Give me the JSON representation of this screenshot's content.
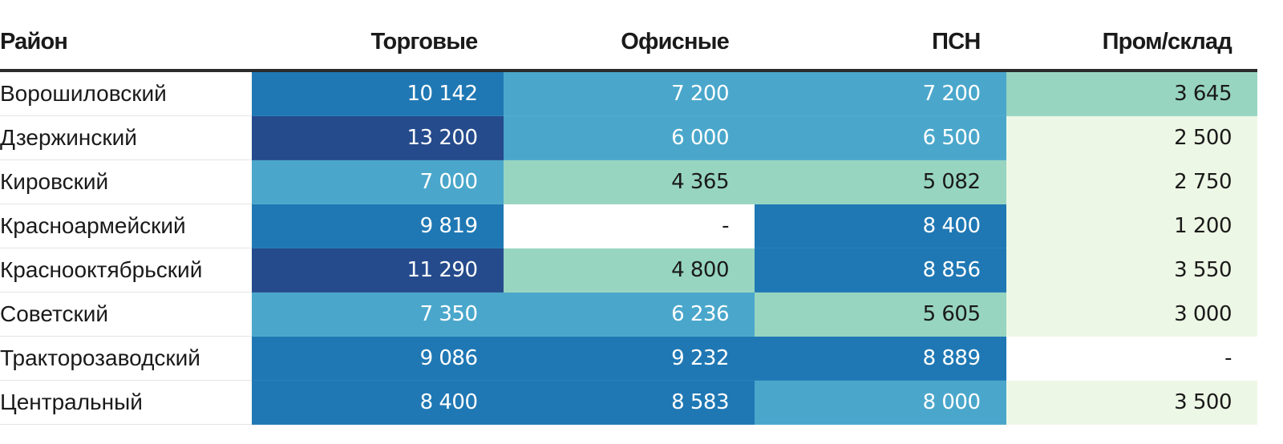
{
  "chart_data": {
    "type": "table",
    "columns": [
      "Район",
      "Торговые",
      "Офисные",
      "ПСН",
      "Пром/склад"
    ],
    "rows": [
      {
        "name": "Ворошиловский",
        "cells": [
          {
            "text": "10 142",
            "value": 10142,
            "bg": "#1f78b4",
            "fg": "#ffffff"
          },
          {
            "text": "7 200",
            "value": 7200,
            "bg": "#4aa7cb",
            "fg": "#ffffff"
          },
          {
            "text": "7 200",
            "value": 7200,
            "bg": "#4aa7cb",
            "fg": "#ffffff"
          },
          {
            "text": "3 645",
            "value": 3645,
            "bg": "#97d5c1",
            "fg": "#1a1a1a"
          }
        ]
      },
      {
        "name": "Дзержинский",
        "cells": [
          {
            "text": "13 200",
            "value": 13200,
            "bg": "#254b8c",
            "fg": "#ffffff"
          },
          {
            "text": "6 000",
            "value": 6000,
            "bg": "#4aa7cb",
            "fg": "#ffffff"
          },
          {
            "text": "6 500",
            "value": 6500,
            "bg": "#4aa7cb",
            "fg": "#ffffff"
          },
          {
            "text": "2 500",
            "value": 2500,
            "bg": "#edf7e5",
            "fg": "#1a1a1a"
          }
        ]
      },
      {
        "name": "Кировский",
        "cells": [
          {
            "text": "7 000",
            "value": 7000,
            "bg": "#4aa7cb",
            "fg": "#ffffff"
          },
          {
            "text": "4 365",
            "value": 4365,
            "bg": "#97d5c1",
            "fg": "#1a1a1a"
          },
          {
            "text": "5 082",
            "value": 5082,
            "bg": "#97d5c1",
            "fg": "#1a1a1a"
          },
          {
            "text": "2 750",
            "value": 2750,
            "bg": "#edf7e5",
            "fg": "#1a1a1a"
          }
        ]
      },
      {
        "name": "Красноармейский",
        "cells": [
          {
            "text": "9 819",
            "value": 9819,
            "bg": "#1f78b4",
            "fg": "#ffffff"
          },
          {
            "text": "-",
            "value": null,
            "bg": "#ffffff",
            "fg": "#1a1a1a"
          },
          {
            "text": "8 400",
            "value": 8400,
            "bg": "#1f78b4",
            "fg": "#ffffff"
          },
          {
            "text": "1 200",
            "value": 1200,
            "bg": "#edf7e5",
            "fg": "#1a1a1a"
          }
        ]
      },
      {
        "name": "Краснооктябрьский",
        "cells": [
          {
            "text": "11 290",
            "value": 11290,
            "bg": "#254b8c",
            "fg": "#ffffff"
          },
          {
            "text": "4 800",
            "value": 4800,
            "bg": "#97d5c1",
            "fg": "#1a1a1a"
          },
          {
            "text": "8 856",
            "value": 8856,
            "bg": "#1f78b4",
            "fg": "#ffffff"
          },
          {
            "text": "3 550",
            "value": 3550,
            "bg": "#edf7e5",
            "fg": "#1a1a1a"
          }
        ]
      },
      {
        "name": "Советский",
        "cells": [
          {
            "text": "7 350",
            "value": 7350,
            "bg": "#4aa7cb",
            "fg": "#ffffff"
          },
          {
            "text": "6 236",
            "value": 6236,
            "bg": "#4aa7cb",
            "fg": "#ffffff"
          },
          {
            "text": "5 605",
            "value": 5605,
            "bg": "#97d5c1",
            "fg": "#1a1a1a"
          },
          {
            "text": "3 000",
            "value": 3000,
            "bg": "#edf7e5",
            "fg": "#1a1a1a"
          }
        ]
      },
      {
        "name": "Тракторозаводский",
        "cells": [
          {
            "text": "9 086",
            "value": 9086,
            "bg": "#1f78b4",
            "fg": "#ffffff"
          },
          {
            "text": "9 232",
            "value": 9232,
            "bg": "#1f78b4",
            "fg": "#ffffff"
          },
          {
            "text": "8 889",
            "value": 8889,
            "bg": "#1f78b4",
            "fg": "#ffffff"
          },
          {
            "text": "-",
            "value": null,
            "bg": "#ffffff",
            "fg": "#1a1a1a"
          }
        ]
      },
      {
        "name": "Центральный",
        "cells": [
          {
            "text": "8 400",
            "value": 8400,
            "bg": "#1f78b4",
            "fg": "#ffffff"
          },
          {
            "text": "8 583",
            "value": 8583,
            "bg": "#1f78b4",
            "fg": "#ffffff"
          },
          {
            "text": "8 000",
            "value": 8000,
            "bg": "#4aa7cb",
            "fg": "#ffffff"
          },
          {
            "text": "3 500",
            "value": 3500,
            "bg": "#edf7e5",
            "fg": "#1a1a1a"
          }
        ]
      }
    ]
  }
}
